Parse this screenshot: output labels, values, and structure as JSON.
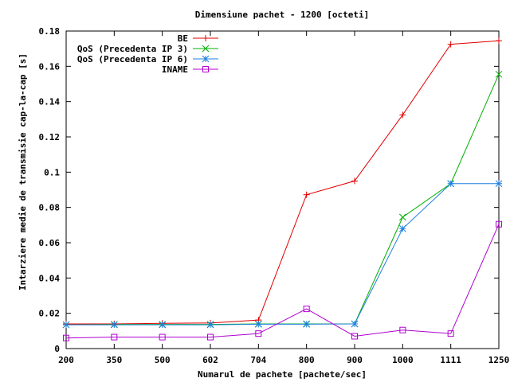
{
  "chart_data": {
    "type": "line",
    "title": "Dimensiune pachet - 1200 [octeti]",
    "xlabel": "Numarul de pachete [pachete/sec]",
    "ylabel": "Intarziere medie de transmisie cap-la-cap [s]",
    "categories": [
      "200",
      "350",
      "500",
      "602",
      "704",
      "800",
      "900",
      "1000",
      "1111",
      "1250"
    ],
    "yticks": [
      "0",
      "0.02",
      "0.04",
      "0.06",
      "0.08",
      "0.1",
      "0.12",
      "0.14",
      "0.16",
      "0.18"
    ],
    "ylim": [
      0,
      0.18
    ],
    "grid": false,
    "legend_position": "top-right",
    "series": [
      {
        "name": "BE",
        "color": "#e00000",
        "marker": "plus",
        "values": [
          0.014,
          0.014,
          0.0143,
          0.0145,
          0.0162,
          0.0872,
          0.095,
          0.1325,
          0.1725,
          0.1745
        ]
      },
      {
        "name": "QoS (Precedenta IP 3)",
        "color": "#00b000",
        "marker": "cross",
        "values": [
          0.0135,
          0.0137,
          0.0137,
          0.0137,
          0.014,
          0.014,
          0.014,
          0.0745,
          0.0935,
          0.1555
        ]
      },
      {
        "name": "QoS (Precedenta IP 6)",
        "color": "#1f7fe0",
        "marker": "star",
        "values": [
          0.0135,
          0.0135,
          0.0135,
          0.0135,
          0.0138,
          0.0138,
          0.014,
          0.068,
          0.0935,
          0.0935
        ]
      },
      {
        "name": "INAME",
        "color": "#b000d0",
        "marker": "square",
        "values": [
          0.006,
          0.0065,
          0.0065,
          0.0065,
          0.0085,
          0.0225,
          0.007,
          0.0105,
          0.0085,
          0.0705
        ]
      }
    ]
  }
}
